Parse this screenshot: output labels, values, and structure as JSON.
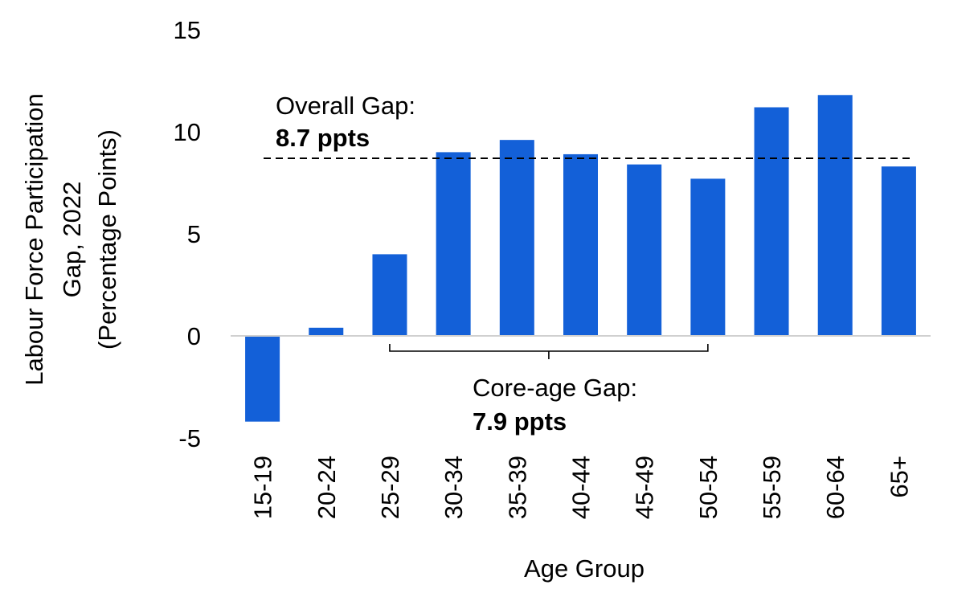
{
  "chart_data": {
    "type": "bar",
    "title": "",
    "xlabel": "Age Group",
    "ylabel_lines": [
      "Labour Force Participation",
      "Gap, 2022",
      "(Percentage Points)"
    ],
    "categories": [
      "15-19",
      "20-24",
      "25-29",
      "30-34",
      "35-39",
      "40-44",
      "45-49",
      "50-54",
      "55-59",
      "60-64",
      "65+"
    ],
    "values": [
      -4.2,
      0.4,
      4.0,
      9.0,
      9.6,
      8.9,
      8.4,
      7.7,
      11.2,
      11.8,
      8.3
    ],
    "ylim": [
      -5,
      15
    ],
    "yticks": [
      "-5",
      "0",
      "5",
      "10",
      "15"
    ],
    "bar_color": "#1360D8",
    "grid": false,
    "reference_line": {
      "value": 8.7,
      "style": "dashed"
    },
    "annotations": {
      "overall": {
        "label": "Overall Gap:",
        "value": "8.7 ppts"
      },
      "core": {
        "label": "Core-age Gap:",
        "value": "7.9 ppts",
        "span": [
          "25-29",
          "50-54"
        ]
      }
    }
  }
}
